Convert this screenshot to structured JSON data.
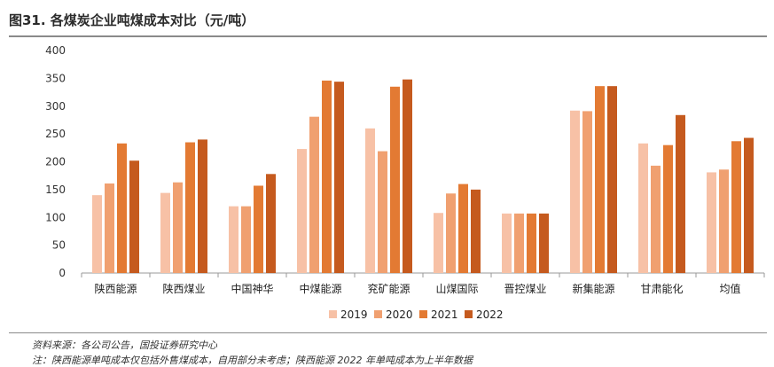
{
  "title": "图31. 各煤炭企业吨煤成本对比（元/吨）",
  "source_note": "资料来源：各公司公告，国投证券研究中心",
  "footnote": "注：陕西能源单吨成本仅包括外售煤成本，自用部分未考虑；陕西能源 2022 年单吨成本为上半年数据",
  "chart_data": {
    "type": "bar",
    "title": "图31. 各煤炭企业吨煤成本对比（元/吨）",
    "xlabel": "",
    "ylabel": "",
    "ylim": [
      0,
      400
    ],
    "yticks": [
      0,
      50,
      100,
      150,
      200,
      250,
      300,
      350,
      400
    ],
    "grid": false,
    "legend": "bottom-center",
    "categories": [
      "陕西能源",
      "陕西煤业",
      "中国神华",
      "中煤能源",
      "兖矿能源",
      "山煤国际",
      "晋控煤业",
      "新集能源",
      "甘肃能化",
      "均值"
    ],
    "series": [
      {
        "name": "2019",
        "color": "#F7C1A6",
        "values": [
          140,
          144,
          120,
          223,
          260,
          108,
          107,
          292,
          233,
          181
        ]
      },
      {
        "name": "2020",
        "color": "#F0A070",
        "values": [
          161,
          163,
          120,
          281,
          219,
          143,
          107,
          291,
          193,
          186
        ]
      },
      {
        "name": "2021",
        "color": "#E37A33",
        "values": [
          233,
          235,
          157,
          346,
          335,
          160,
          107,
          336,
          230,
          237
        ]
      },
      {
        "name": "2022",
        "color": "#C55A1E",
        "values": [
          202,
          240,
          178,
          344,
          348,
          150,
          107,
          336,
          284,
          243
        ]
      }
    ]
  }
}
